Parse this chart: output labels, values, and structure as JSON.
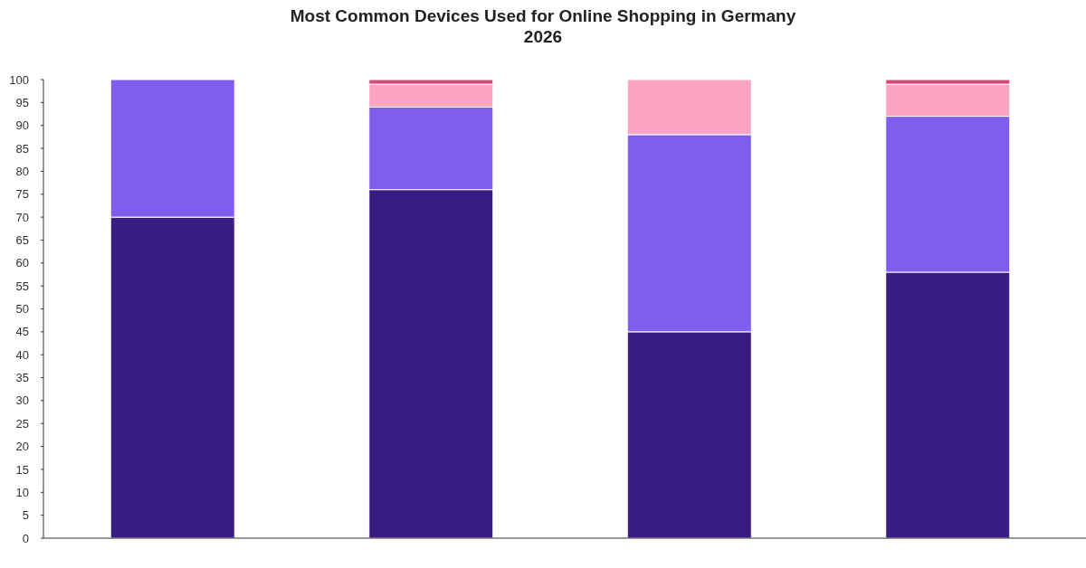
{
  "chart_data": {
    "type": "bar",
    "title": "Most Common Devices Used for Online Shopping in Germany 2026",
    "categories": [
      null,
      null,
      null,
      null
    ],
    "series": [
      {
        "color": "#381c82",
        "values": [
          70,
          76,
          45,
          58
        ]
      },
      {
        "color": "#7f5eee",
        "values": [
          30,
          18,
          43,
          34
        ]
      },
      {
        "color": "#fda3c4",
        "values": [
          null,
          5,
          12,
          7
        ]
      },
      {
        "color": "#e5427d",
        "values": [
          null,
          1,
          null,
          1
        ]
      }
    ],
    "stacked": true,
    "ylim": [
      0,
      100
    ],
    "yticks": [
      0,
      5,
      10,
      15,
      20,
      25,
      30,
      35,
      40,
      45,
      50,
      55,
      60,
      65,
      70,
      75,
      80,
      85,
      90,
      95,
      100
    ],
    "grid": false
  }
}
